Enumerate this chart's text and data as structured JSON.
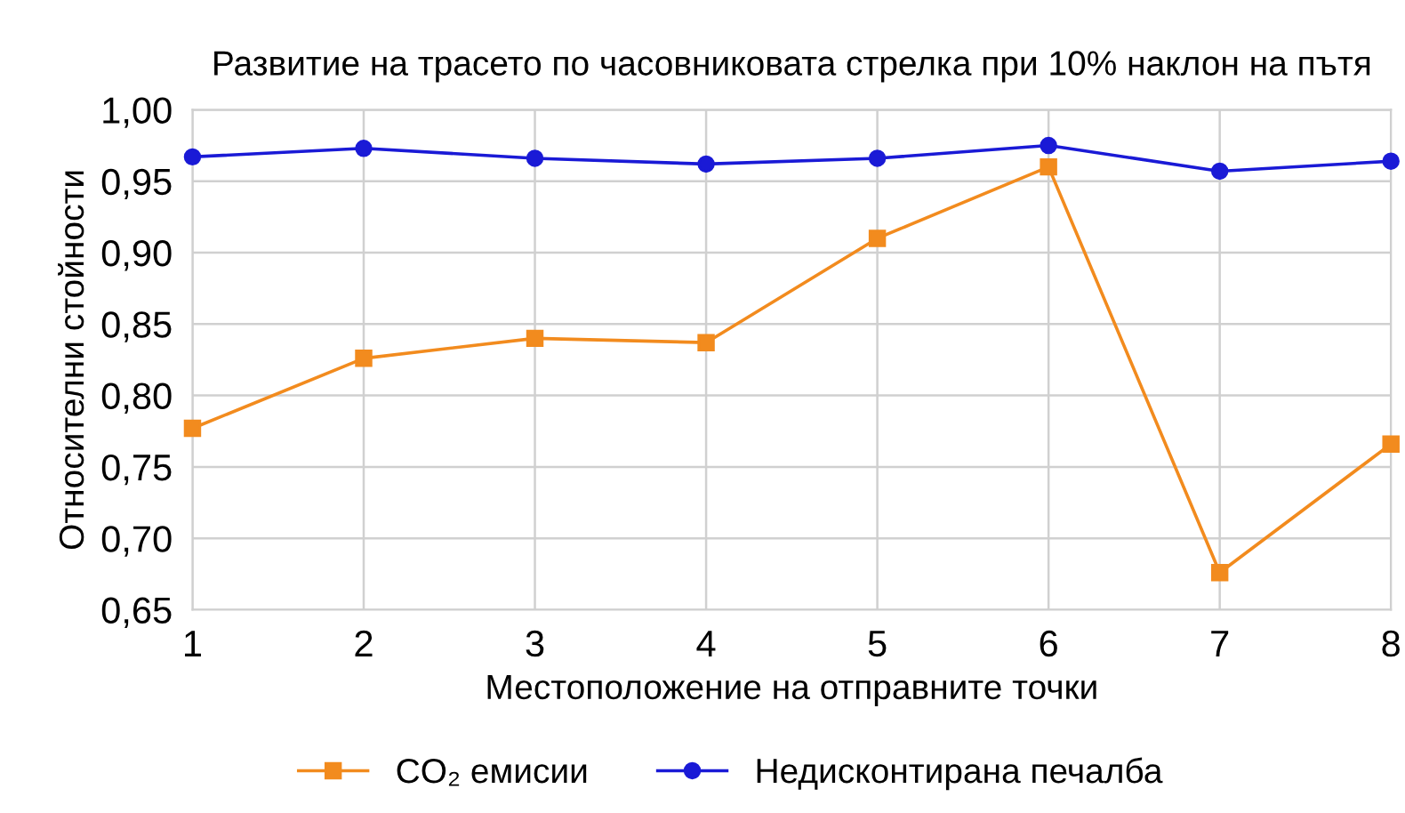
{
  "chart_data": {
    "type": "line",
    "title": "Развитие на трасето по часовниковата стрелка при 10% наклон на пътя",
    "xlabel": "Местоположение на отправните точки",
    "ylabel": "Относителни стойности",
    "x": [
      1,
      2,
      3,
      4,
      5,
      6,
      7,
      8
    ],
    "series": [
      {
        "name": "CO₂ емисии",
        "color": "#f28b1e",
        "marker": "square",
        "values": [
          0.777,
          0.826,
          0.84,
          0.837,
          0.91,
          0.96,
          0.676,
          0.766
        ]
      },
      {
        "name": "Недисконтирана печалба",
        "color": "#1a1ad6",
        "marker": "circle",
        "values": [
          0.967,
          0.973,
          0.966,
          0.962,
          0.966,
          0.975,
          0.957,
          0.964
        ]
      }
    ],
    "xlim": [
      1,
      8
    ],
    "xticks": [
      1,
      2,
      3,
      4,
      5,
      6,
      7,
      8
    ],
    "ylim": [
      0.65,
      1.0
    ],
    "yticks": [
      {
        "value": 0.65,
        "label": "0,65"
      },
      {
        "value": 0.7,
        "label": "0,70"
      },
      {
        "value": 0.75,
        "label": "0,75"
      },
      {
        "value": 0.8,
        "label": "0,80"
      },
      {
        "value": 0.85,
        "label": "0,85"
      },
      {
        "value": 0.9,
        "label": "0,90"
      },
      {
        "value": 0.95,
        "label": "0,95"
      },
      {
        "value": 1.0,
        "label": "1,00"
      }
    ],
    "grid": true,
    "legend": "bottom",
    "line_style": "solid"
  }
}
